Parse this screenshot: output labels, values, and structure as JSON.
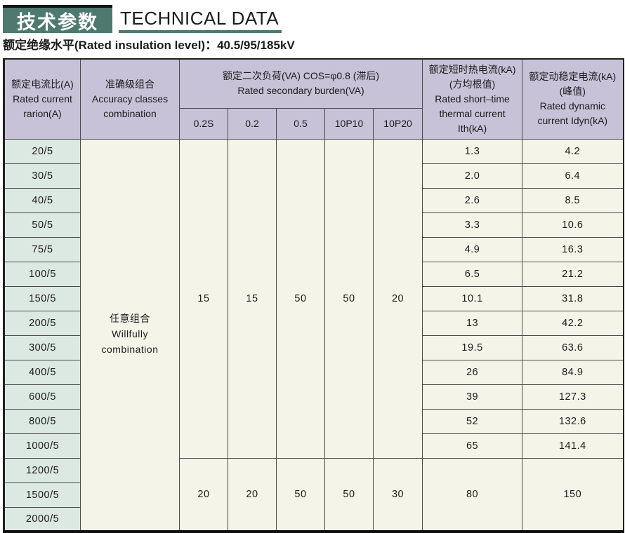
{
  "page": {
    "title_cn": "技术参数",
    "title_en": "TECHNICAL DATA",
    "subtitle": "额定绝缘水平(Rated insulation level)：40.5/95/185kV"
  },
  "colors": {
    "accent_teal": "#4e796e",
    "header_purple": "#c7c2d7",
    "ratio_column_green": "#dce8e2",
    "cell_cream": "#f5f4e9",
    "title_text": "#ffffff"
  },
  "table": {
    "headers": {
      "ratio": "额定电流比(A)\nRated current\nrarion(A)",
      "accuracy": "准确级组合\nAccuracy classes\ncombination",
      "burden": "额定二次负荷(VA) COS=φ0.8 (滞后)\nRated secondary burden(VA)",
      "burden_classes": [
        "0.2S",
        "0.2",
        "0.5",
        "10P10",
        "10P20"
      ],
      "thermal": "额定短时热电流(kA)\n(方均根值)\nRated short–time\nthermal current\nIth(kA)",
      "dynamic": "额定动稳定电流(kA)\n(峰值)\nRated dynamic\ncurrent Idyn(kA)"
    },
    "accuracy_cell": "任意组合\nWillfully\ncombination",
    "groups": [
      {
        "burden_values": [
          "15",
          "15",
          "50",
          "50",
          "20"
        ],
        "rows": [
          {
            "ratio": "20/5",
            "ith": "1.3",
            "idyn": "4.2"
          },
          {
            "ratio": "30/5",
            "ith": "2.0",
            "idyn": "6.4"
          },
          {
            "ratio": "40/5",
            "ith": "2.6",
            "idyn": "8.5"
          },
          {
            "ratio": "50/5",
            "ith": "3.3",
            "idyn": "10.6"
          },
          {
            "ratio": "75/5",
            "ith": "4.9",
            "idyn": "16.3"
          },
          {
            "ratio": "100/5",
            "ith": "6.5",
            "idyn": "21.2"
          },
          {
            "ratio": "150/5",
            "ith": "10.1",
            "idyn": "31.8"
          },
          {
            "ratio": "200/5",
            "ith": "13",
            "idyn": "42.2"
          },
          {
            "ratio": "300/5",
            "ith": "19.5",
            "idyn": "63.6"
          },
          {
            "ratio": "400/5",
            "ith": "26",
            "idyn": "84.9"
          },
          {
            "ratio": "600/5",
            "ith": "39",
            "idyn": "127.3"
          },
          {
            "ratio": "800/5",
            "ith": "52",
            "idyn": "132.6"
          },
          {
            "ratio": "1000/5",
            "ith": "65",
            "idyn": "141.4"
          }
        ]
      },
      {
        "burden_values": [
          "20",
          "20",
          "50",
          "50",
          "30"
        ],
        "merged_ith": "80",
        "merged_idyn": "150",
        "rows": [
          {
            "ratio": "1200/5"
          },
          {
            "ratio": "1500/5"
          },
          {
            "ratio": "2000/5"
          }
        ]
      }
    ]
  }
}
